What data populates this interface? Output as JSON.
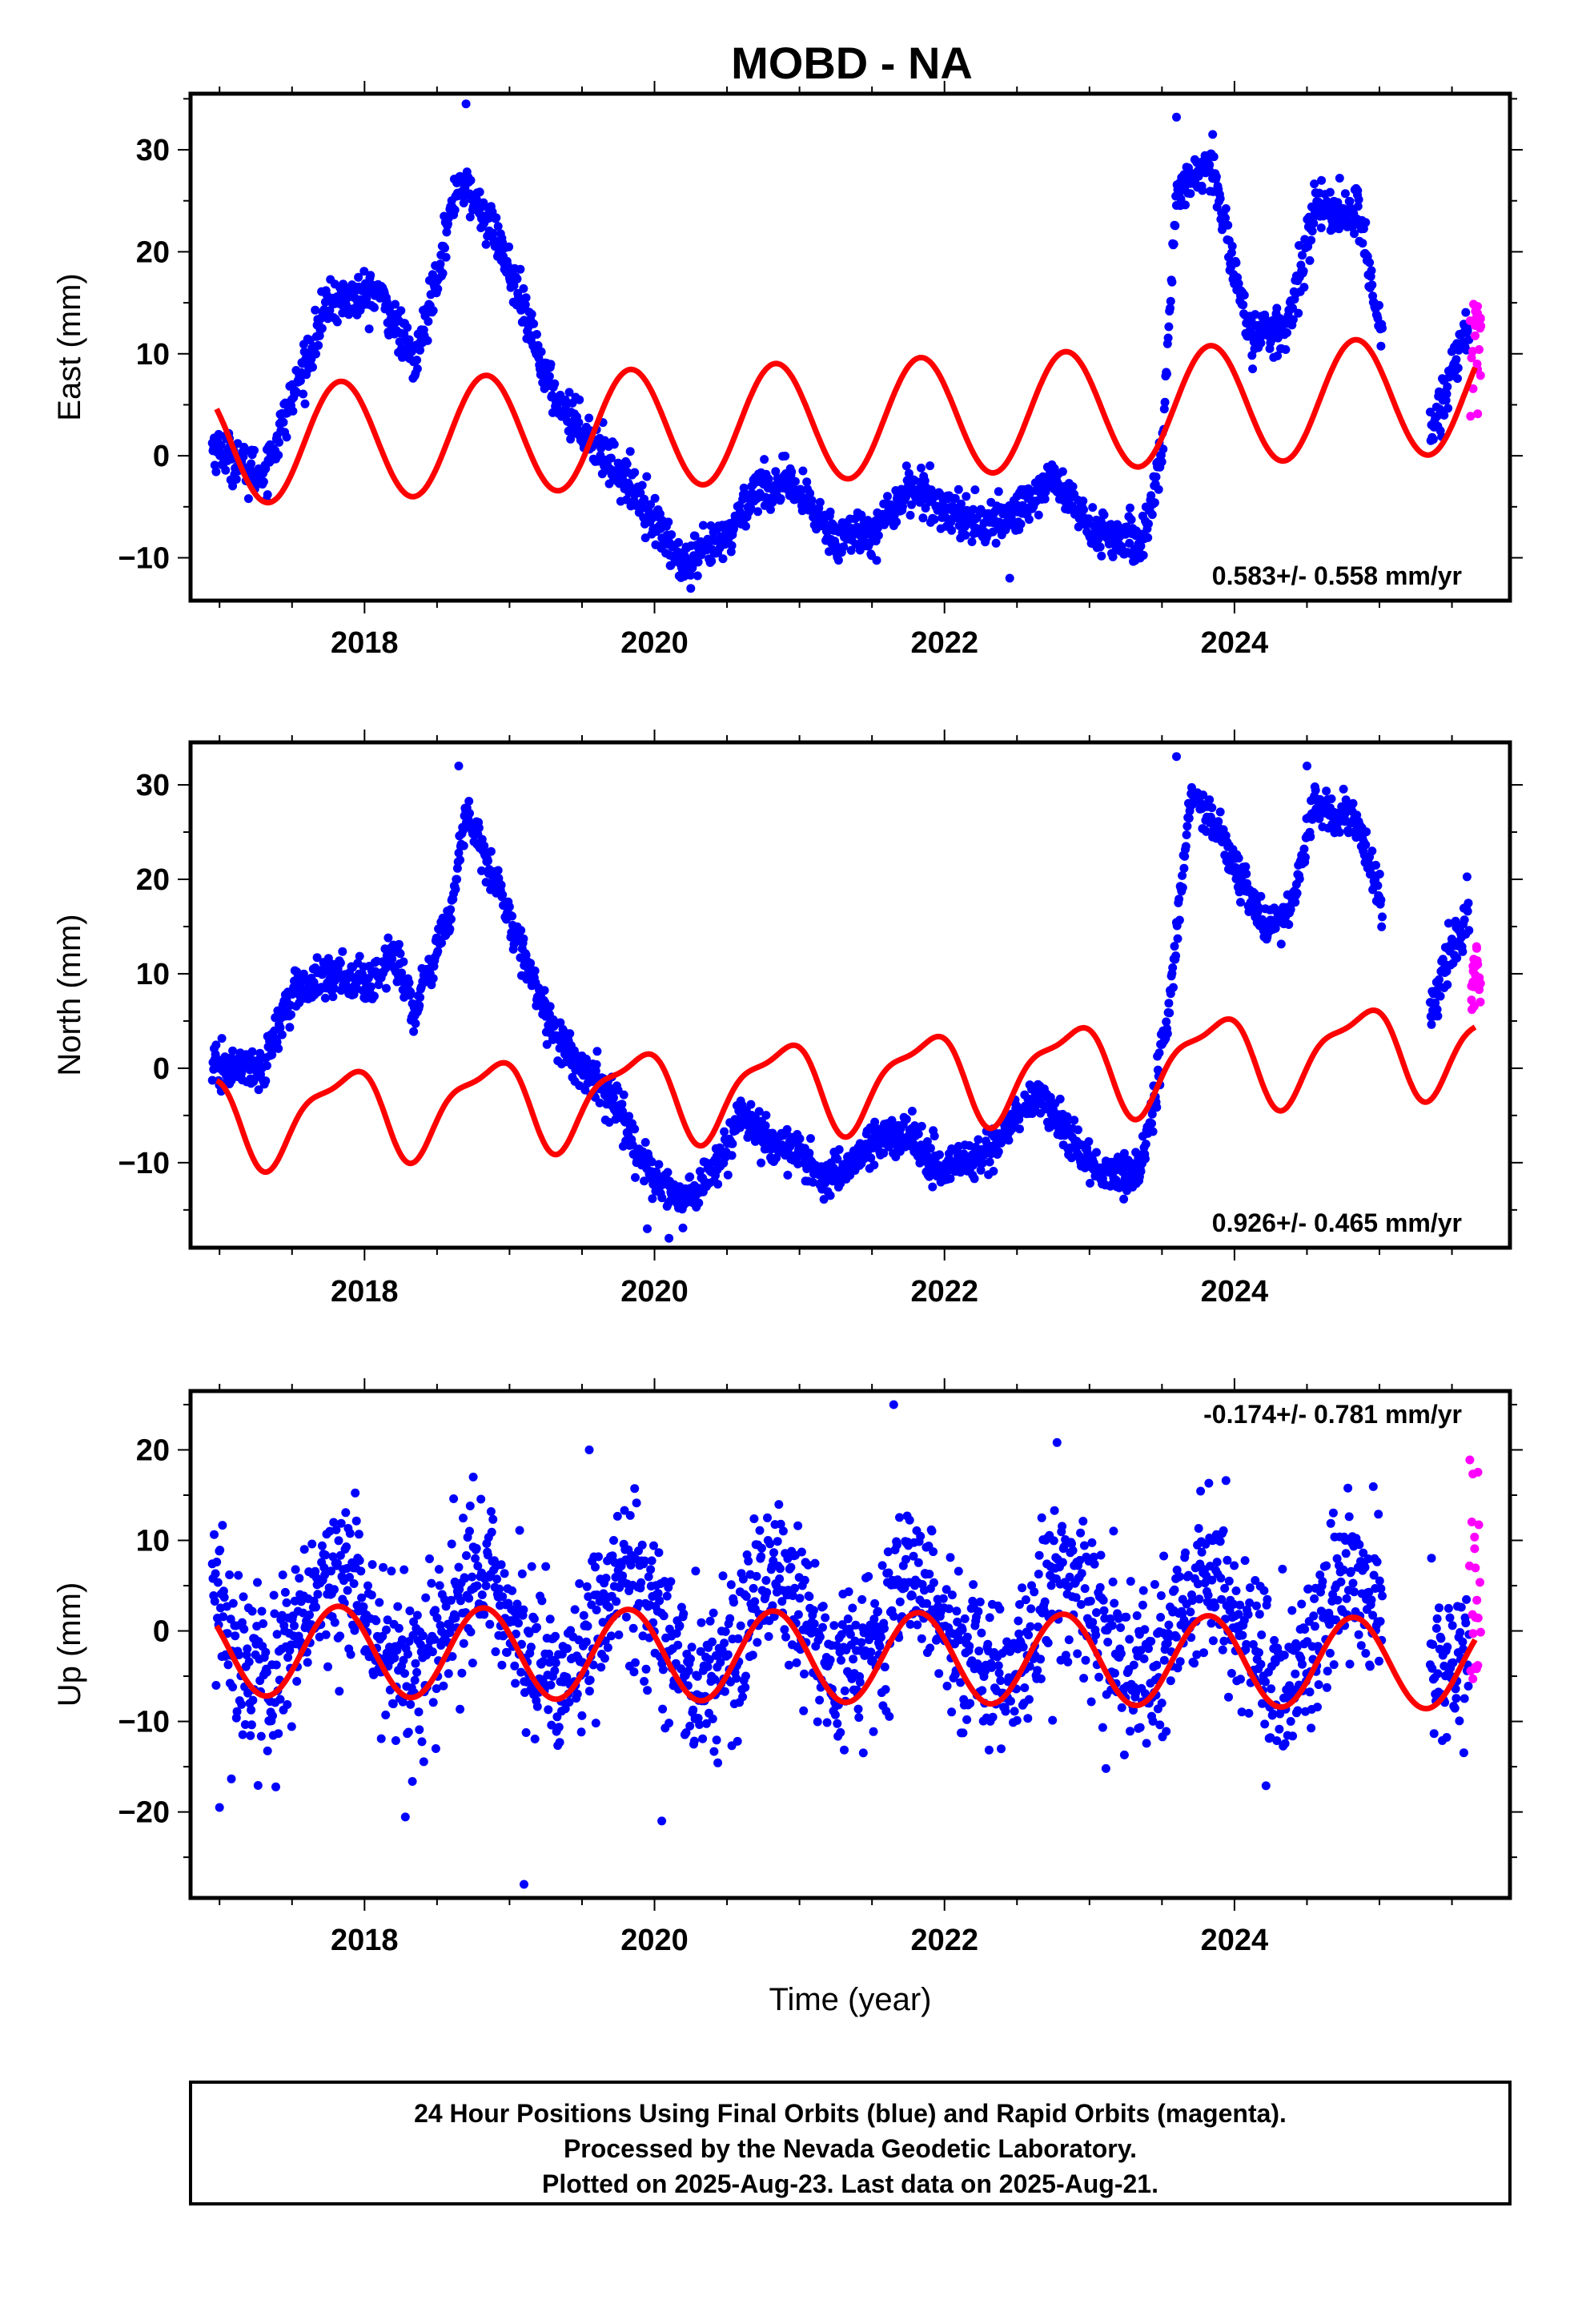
{
  "title": "MOBD - NA",
  "caption": {
    "lines": [
      "24 Hour Positions Using Final Orbits (blue) and Rapid Orbits (magenta).",
      "Processed by the Nevada Geodetic Laboratory.",
      "Plotted on 2025-Aug-23. Last data on 2025-Aug-21."
    ]
  },
  "colors": {
    "final": "#0000ff",
    "rapid": "#ff00ff",
    "model": "#ff0000",
    "frame": "#000000"
  },
  "chart_data": [
    {
      "type": "scatter",
      "ylabel": "East (mm)",
      "xlabel": "",
      "rate_label": "0.583+/- 0.558 mm/yr",
      "rate_position": "bottom-right",
      "xlim": [
        2016.8,
        2025.9
      ],
      "ylim": [
        -14.2,
        35.5
      ],
      "x_ticks": [
        2018,
        2020,
        2022,
        2024
      ],
      "y_ticks": [
        -10,
        0,
        10,
        20,
        30
      ],
      "y_tick_labels": [
        "−10",
        "0",
        "10",
        "20",
        "30"
      ],
      "trend_knots": [
        [
          2016.95,
          1
        ],
        [
          2017.3,
          -2
        ],
        [
          2017.75,
          15
        ],
        [
          2018.1,
          16
        ],
        [
          2018.35,
          9
        ],
        [
          2018.65,
          27
        ],
        [
          2018.9,
          22
        ],
        [
          2019.3,
          6
        ],
        [
          2019.6,
          1
        ],
        [
          2019.9,
          -4
        ],
        [
          2020.2,
          -11
        ],
        [
          2020.5,
          -8
        ],
        [
          2020.7,
          -3
        ],
        [
          2020.95,
          -3
        ],
        [
          2021.25,
          -8
        ],
        [
          2021.55,
          -7
        ],
        [
          2021.75,
          -3
        ],
        [
          2022.0,
          -5
        ],
        [
          2022.3,
          -7
        ],
        [
          2022.55,
          -5
        ],
        [
          2022.75,
          -2
        ],
        [
          2023.0,
          -7
        ],
        [
          2023.35,
          -9
        ],
        [
          2023.5,
          0
        ],
        [
          2023.6,
          26
        ],
        [
          2023.85,
          28
        ],
        [
          2024.1,
          12
        ],
        [
          2024.35,
          12
        ],
        [
          2024.55,
          24
        ],
        [
          2024.85,
          24
        ],
        [
          2025.0,
          13
        ],
        [
          2025.15,
          10
        ]
      ],
      "trend_noise_mm": 1.1,
      "extra_points": [
        [
          2018.7,
          34.5
        ],
        [
          2023.6,
          33.2
        ],
        [
          2023.85,
          31.5
        ],
        [
          2024.6,
          27
        ],
        [
          2024.85,
          26
        ],
        [
          2017.2,
          -4.2
        ],
        [
          2020.25,
          -13
        ],
        [
          2022.45,
          -12
        ]
      ],
      "final_tail": {
        "x": [
          2025.35,
          2025.62
        ],
        "y": [
          2,
          15
        ],
        "noise_mm": 1.5
      },
      "rapid": {
        "x": [
          2025.62,
          2025.7
        ],
        "y": [
          2,
          15
        ]
      },
      "model": {
        "x0": 2017.0,
        "y0": 4,
        "slope": 0.583,
        "amp1": 5.8,
        "phase1": 2.6,
        "amp2": 0.0,
        "phase2": 0,
        "x_end": 2025.66
      }
    },
    {
      "type": "scatter",
      "ylabel": "North (mm)",
      "xlabel": "",
      "rate_label": "0.926+/- 0.465 mm/yr",
      "rate_position": "bottom-right",
      "xlim": [
        2016.8,
        2025.9
      ],
      "ylim": [
        -19,
        34.5
      ],
      "x_ticks": [
        2018,
        2020,
        2022,
        2024
      ],
      "y_ticks": [
        -10,
        0,
        10,
        20,
        30
      ],
      "y_tick_labels": [
        "−10",
        "0",
        "10",
        "20",
        "30"
      ],
      "trend_knots": [
        [
          2016.95,
          0
        ],
        [
          2017.3,
          0
        ],
        [
          2017.5,
          8
        ],
        [
          2017.8,
          10
        ],
        [
          2018.05,
          9
        ],
        [
          2018.2,
          12
        ],
        [
          2018.35,
          6
        ],
        [
          2018.6,
          17
        ],
        [
          2018.7,
          27
        ],
        [
          2018.9,
          20
        ],
        [
          2019.3,
          4
        ],
        [
          2019.55,
          -1
        ],
        [
          2019.75,
          -4
        ],
        [
          2019.9,
          -10
        ],
        [
          2020.2,
          -14
        ],
        [
          2020.45,
          -10
        ],
        [
          2020.6,
          -5
        ],
        [
          2020.8,
          -8
        ],
        [
          2021.0,
          -9
        ],
        [
          2021.2,
          -12
        ],
        [
          2021.5,
          -8
        ],
        [
          2021.75,
          -7
        ],
        [
          2022.0,
          -11
        ],
        [
          2022.3,
          -9
        ],
        [
          2022.5,
          -5
        ],
        [
          2022.65,
          -3
        ],
        [
          2022.85,
          -7
        ],
        [
          2023.05,
          -11
        ],
        [
          2023.35,
          -11
        ],
        [
          2023.55,
          6
        ],
        [
          2023.7,
          29
        ],
        [
          2023.9,
          25
        ],
        [
          2024.2,
          15
        ],
        [
          2024.4,
          17
        ],
        [
          2024.55,
          28
        ],
        [
          2024.85,
          26
        ],
        [
          2025.0,
          18
        ],
        [
          2025.15,
          12
        ]
      ],
      "trend_noise_mm": 1.1,
      "extra_points": [
        [
          2018.65,
          32
        ],
        [
          2023.6,
          33
        ],
        [
          2024.5,
          32
        ],
        [
          2020.1,
          -18
        ],
        [
          2019.95,
          -17
        ]
      ],
      "final_tail": {
        "x": [
          2025.35,
          2025.62
        ],
        "y": [
          6,
          19
        ],
        "noise_mm": 1.5
      },
      "rapid": {
        "x": [
          2025.62,
          2025.7
        ],
        "y": [
          6,
          13
        ]
      },
      "model": {
        "x0": 2017.0,
        "y0": -1.5,
        "slope": 0.926,
        "amp1": 4.5,
        "phase1": 2.5,
        "amp2": 1.5,
        "phase2": 1.0,
        "x_end": 2025.66
      }
    },
    {
      "type": "scatter",
      "ylabel": "Up (mm)",
      "xlabel": "Time (year)",
      "rate_label": "-0.174+/- 0.781 mm/yr",
      "rate_position": "top-right",
      "xlim": [
        2016.8,
        2025.9
      ],
      "ylim": [
        -29.5,
        26.5
      ],
      "x_ticks": [
        2018,
        2020,
        2022,
        2024
      ],
      "y_ticks": [
        -20,
        -10,
        0,
        10,
        20
      ],
      "y_tick_labels": [
        "−20",
        "−10",
        "0",
        "10",
        "20"
      ],
      "seasonal": {
        "amp": 5.5,
        "phase": 2.7,
        "noise_mm": 4.5
      },
      "extra_points": [
        [
          2021.65,
          25
        ],
        [
          2019.1,
          -28
        ],
        [
          2017.0,
          -19.5
        ],
        [
          2020.05,
          -21
        ],
        [
          2018.75,
          17
        ],
        [
          2019.55,
          20
        ]
      ],
      "final_tail": {
        "x": [
          2025.35,
          2025.62
        ],
        "y": [
          -13,
          6
        ],
        "noise_mm": 4
      },
      "rapid": {
        "x": [
          2025.62,
          2025.7
        ],
        "y": [
          -6,
          19
        ]
      },
      "model": {
        "x0": 2017.0,
        "y0": 0,
        "slope": -0.174,
        "amp1": 5.0,
        "phase1": 2.7,
        "amp2": 0.0,
        "phase2": 0,
        "x_end": 2025.66
      }
    }
  ]
}
